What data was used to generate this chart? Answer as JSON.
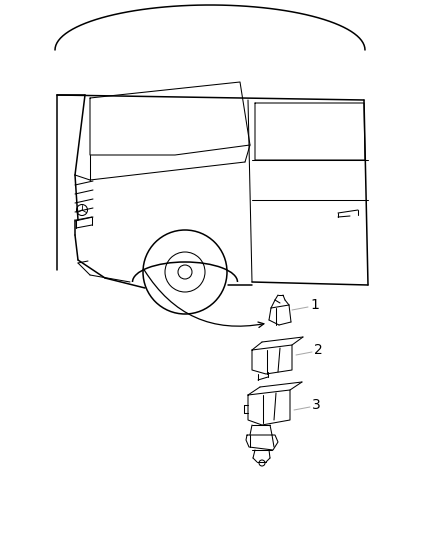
{
  "background_color": "#ffffff",
  "line_color": "#000000",
  "line_color_gray": "#aaaaaa",
  "fig_width": 4.38,
  "fig_height": 5.33,
  "dpi": 100,
  "label_1": "1",
  "label_2": "2",
  "label_3": "3",
  "label_fontsize": 10
}
